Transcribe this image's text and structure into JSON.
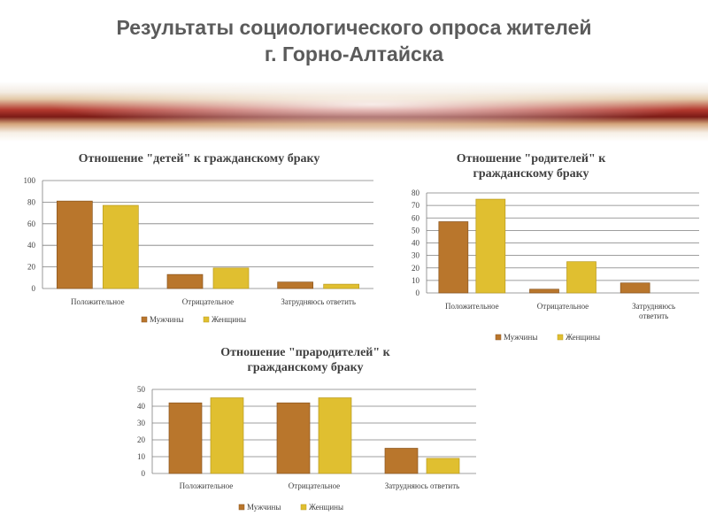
{
  "header": {
    "title_line1": "Результаты социологического опроса жителей",
    "title_line2": "г. Горно-Алтайска"
  },
  "colors": {
    "men": "#b9762c",
    "women": "#e0bf30",
    "grid": "#7f7f7f"
  },
  "chart_data": [
    {
      "type": "bar",
      "title": "Отношение \"детей\" к гражданскому браку",
      "categories": [
        "Положительное",
        "Отрицательное",
        "Затрудняюсь ответить"
      ],
      "series": [
        {
          "name": "Мужчины",
          "values": [
            81,
            13,
            6
          ]
        },
        {
          "name": "Женщины",
          "values": [
            77,
            19,
            4
          ]
        }
      ],
      "ylim": [
        0,
        100
      ],
      "yticks": [
        0,
        20,
        40,
        60,
        80,
        100
      ],
      "grid": true,
      "legend": "bottom"
    },
    {
      "type": "bar",
      "title": "Отношение \"родителей\" к гражданскому браку",
      "categories": [
        "Положительное",
        "Отрицательное",
        "Затрудняюсь ответить"
      ],
      "series": [
        {
          "name": "Мужчины",
          "values": [
            57,
            3,
            8
          ]
        },
        {
          "name": "Женщины",
          "values": [
            75,
            25,
            0
          ]
        }
      ],
      "ylim": [
        0,
        80
      ],
      "yticks": [
        0,
        10,
        20,
        30,
        40,
        50,
        60,
        70,
        80
      ],
      "grid": true,
      "legend": "bottom"
    },
    {
      "type": "bar",
      "title": "Отношение \"прародителей\" к гражданскому браку",
      "categories": [
        "Положительное",
        "Отрицательное",
        "Затрудняюсь ответить"
      ],
      "series": [
        {
          "name": "Мужчины",
          "values": [
            42,
            42,
            15
          ]
        },
        {
          "name": "Женщины",
          "values": [
            45,
            45,
            9
          ]
        }
      ],
      "ylim": [
        0,
        50
      ],
      "yticks": [
        0,
        10,
        20,
        30,
        40,
        50
      ],
      "grid": true,
      "legend": "bottom"
    }
  ]
}
